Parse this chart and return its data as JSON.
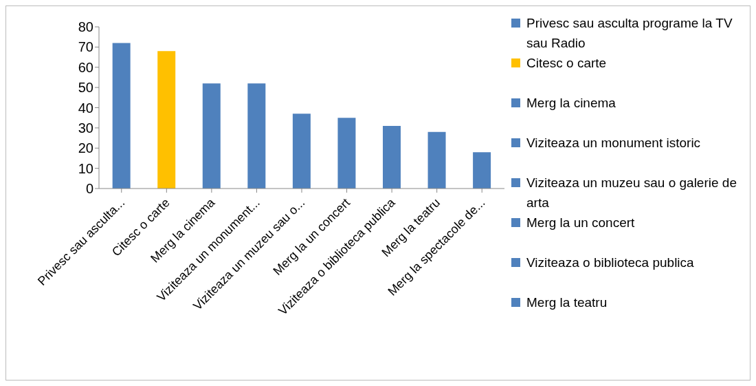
{
  "chart_data": {
    "type": "bar",
    "stacked": true,
    "categories": [
      "Privesc sau asculta...",
      "Citesc o carte",
      "Merg la cinema",
      "Viziteaza un monument...",
      "Viziteaza un muzeu sau o...",
      "Merg la un concert",
      "Viziteaza o biblioteca publica",
      "Merg la teatru",
      "Merg la spectacole de..."
    ],
    "series": [
      {
        "name": "Privesc sau asculta programe la TV sau Radio",
        "color": "#4f81bd",
        "values": [
          72,
          null,
          null,
          null,
          null,
          null,
          null,
          null,
          null
        ]
      },
      {
        "name": "Citesc o carte",
        "color": "#ffc000",
        "values": [
          null,
          68,
          null,
          null,
          null,
          null,
          null,
          null,
          null
        ]
      },
      {
        "name": "Merg la cinema",
        "color": "#4f81bd",
        "values": [
          null,
          null,
          52,
          null,
          null,
          null,
          null,
          null,
          null
        ]
      },
      {
        "name": "Viziteaza un monument istoric",
        "color": "#4f81bd",
        "values": [
          null,
          null,
          null,
          52,
          null,
          null,
          null,
          null,
          null
        ]
      },
      {
        "name": "Viziteaza un muzeu sau o galerie de arta",
        "color": "#4f81bd",
        "values": [
          null,
          null,
          null,
          null,
          37,
          null,
          null,
          null,
          null
        ]
      },
      {
        "name": "Merg la un concert",
        "color": "#4f81bd",
        "values": [
          null,
          null,
          null,
          null,
          null,
          35,
          null,
          null,
          null
        ]
      },
      {
        "name": "Viziteaza o biblioteca publica",
        "color": "#4f81bd",
        "values": [
          null,
          null,
          null,
          null,
          null,
          null,
          31,
          null,
          null
        ]
      },
      {
        "name": "Merg la teatru",
        "color": "#4f81bd",
        "values": [
          null,
          null,
          null,
          null,
          null,
          null,
          null,
          28,
          null
        ]
      },
      {
        "color": "#4f81bd",
        "values": [
          null,
          null,
          null,
          null,
          null,
          null,
          null,
          null,
          18
        ]
      }
    ],
    "ylim": [
      0,
      80
    ],
    "yticks": [
      0,
      10,
      20,
      30,
      40,
      50,
      60,
      70,
      80
    ],
    "grid": false,
    "legend": "right"
  }
}
